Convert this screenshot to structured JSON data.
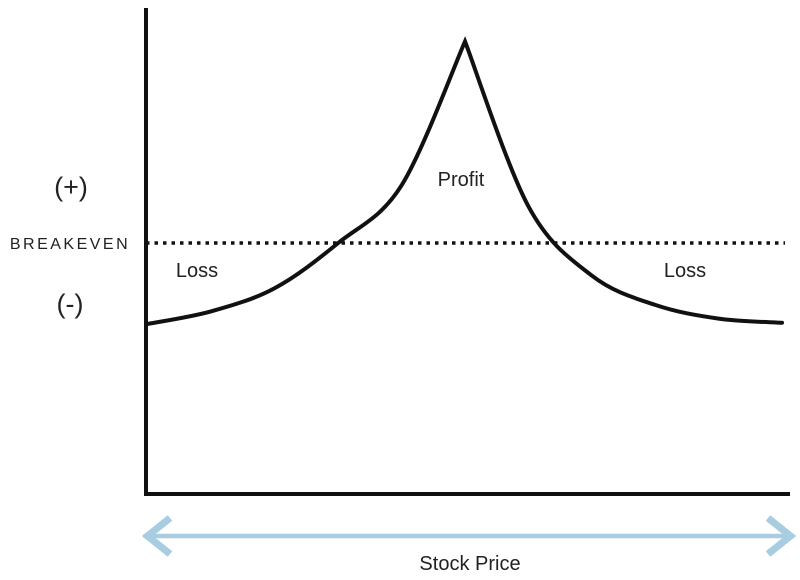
{
  "chart_data": {
    "type": "line",
    "x_direction": "left-to-right",
    "series": [
      {
        "x": [
          0,
          0.1,
          0.2,
          0.3,
          0.4,
          0.5,
          0.6,
          0.7,
          0.8,
          0.9,
          1
        ],
        "values": [
          -0.77,
          -0.65,
          -0.43,
          0,
          0.55,
          1.92,
          0.35,
          -0.31,
          -0.59,
          -0.72,
          -0.76
        ]
      }
    ],
    "breakeven_value": 0,
    "xlabel": "Stock Price",
    "ylabel_positive": "(+)",
    "ylabel_negative": "(-)",
    "breakeven_label": "BREAKEVEN",
    "region_labels": {
      "profit": "Profit",
      "loss_left": "Loss",
      "loss_right": "Loss"
    },
    "grid": false,
    "legend": "none"
  },
  "colors": {
    "curve": "#111111",
    "axes": "#111111",
    "breakeven_line": "#111111",
    "price_arrow": "#a9cde0",
    "text": "#222222"
  }
}
